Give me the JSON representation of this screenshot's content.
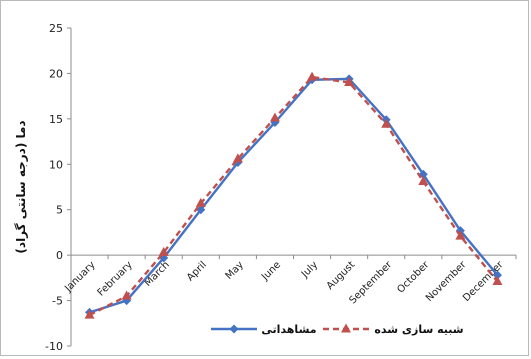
{
  "chart_data": {
    "type": "line",
    "title": "",
    "xlabel": "",
    "ylabel": "دما (درجه سانتی گراد)",
    "ylim": [
      -10,
      25
    ],
    "yticks": [
      -10,
      -5,
      0,
      5,
      10,
      15,
      20,
      25
    ],
    "grid": false,
    "legend_position": "bottom",
    "categories": [
      "January",
      "February",
      "March",
      "April",
      "May",
      "June",
      "July",
      "August",
      "September",
      "October",
      "November",
      "December"
    ],
    "series": [
      {
        "name": "مشاهداتی",
        "color": "#4472c4",
        "marker": "diamond",
        "line_style": "solid",
        "values": [
          -6.3,
          -5.0,
          -0.3,
          5.0,
          10.2,
          14.6,
          19.3,
          19.4,
          14.9,
          8.9,
          2.7,
          -2.2
        ]
      },
      {
        "name": "شبیه سازی شده",
        "color": "#c0504d",
        "marker": "triangle",
        "line_style": "dashed",
        "values": [
          -6.6,
          -4.5,
          0.3,
          5.7,
          10.6,
          15.1,
          19.6,
          19.0,
          14.4,
          8.1,
          2.1,
          -2.9
        ]
      }
    ]
  }
}
